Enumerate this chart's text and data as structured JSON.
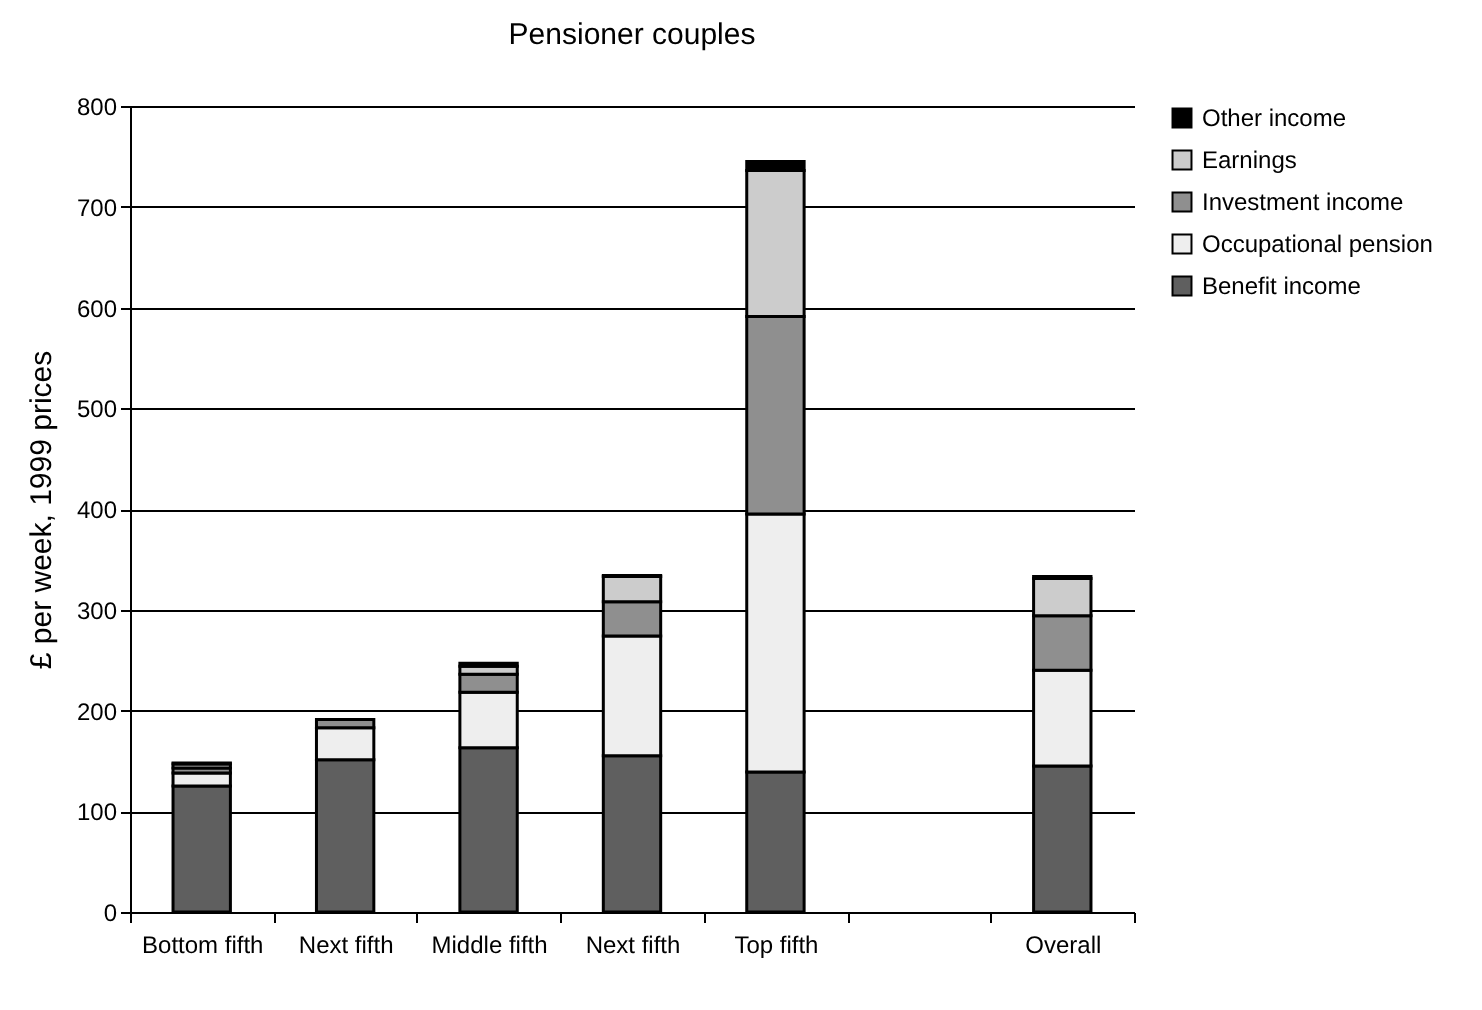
{
  "chart_data": {
    "type": "bar",
    "title": "Pensioner couples",
    "ylabel": "£ per week, 1999 prices",
    "categories": [
      "Bottom fifth",
      "Next fifth",
      "Middle fifth",
      "Next fifth",
      "Top fifth",
      null,
      "Overall"
    ],
    "series": [
      {
        "name": "Benefit income",
        "color": "#5f5f5f",
        "values": [
          125,
          151,
          163,
          155,
          139,
          null,
          145
        ]
      },
      {
        "name": "Occupational pension",
        "color": "#eeeeee",
        "values": [
          13,
          32,
          55,
          119,
          256,
          null,
          95
        ]
      },
      {
        "name": "Investment income",
        "color": "#8f8f8f",
        "values": [
          5,
          8,
          18,
          34,
          196,
          null,
          54
        ]
      },
      {
        "name": "Earnings",
        "color": "#cccccc",
        "values": [
          4,
          null,
          8,
          25,
          145,
          null,
          37
        ]
      },
      {
        "name": "Other income",
        "color": "#000000",
        "values": [
          1,
          null,
          3,
          1,
          9,
          null,
          2
        ]
      }
    ],
    "stacked": true,
    "ylim": [
      0,
      800
    ],
    "yticks": [
      0,
      100,
      200,
      300,
      400,
      500,
      600,
      700,
      800
    ],
    "grid": "y",
    "legend": "right"
  }
}
